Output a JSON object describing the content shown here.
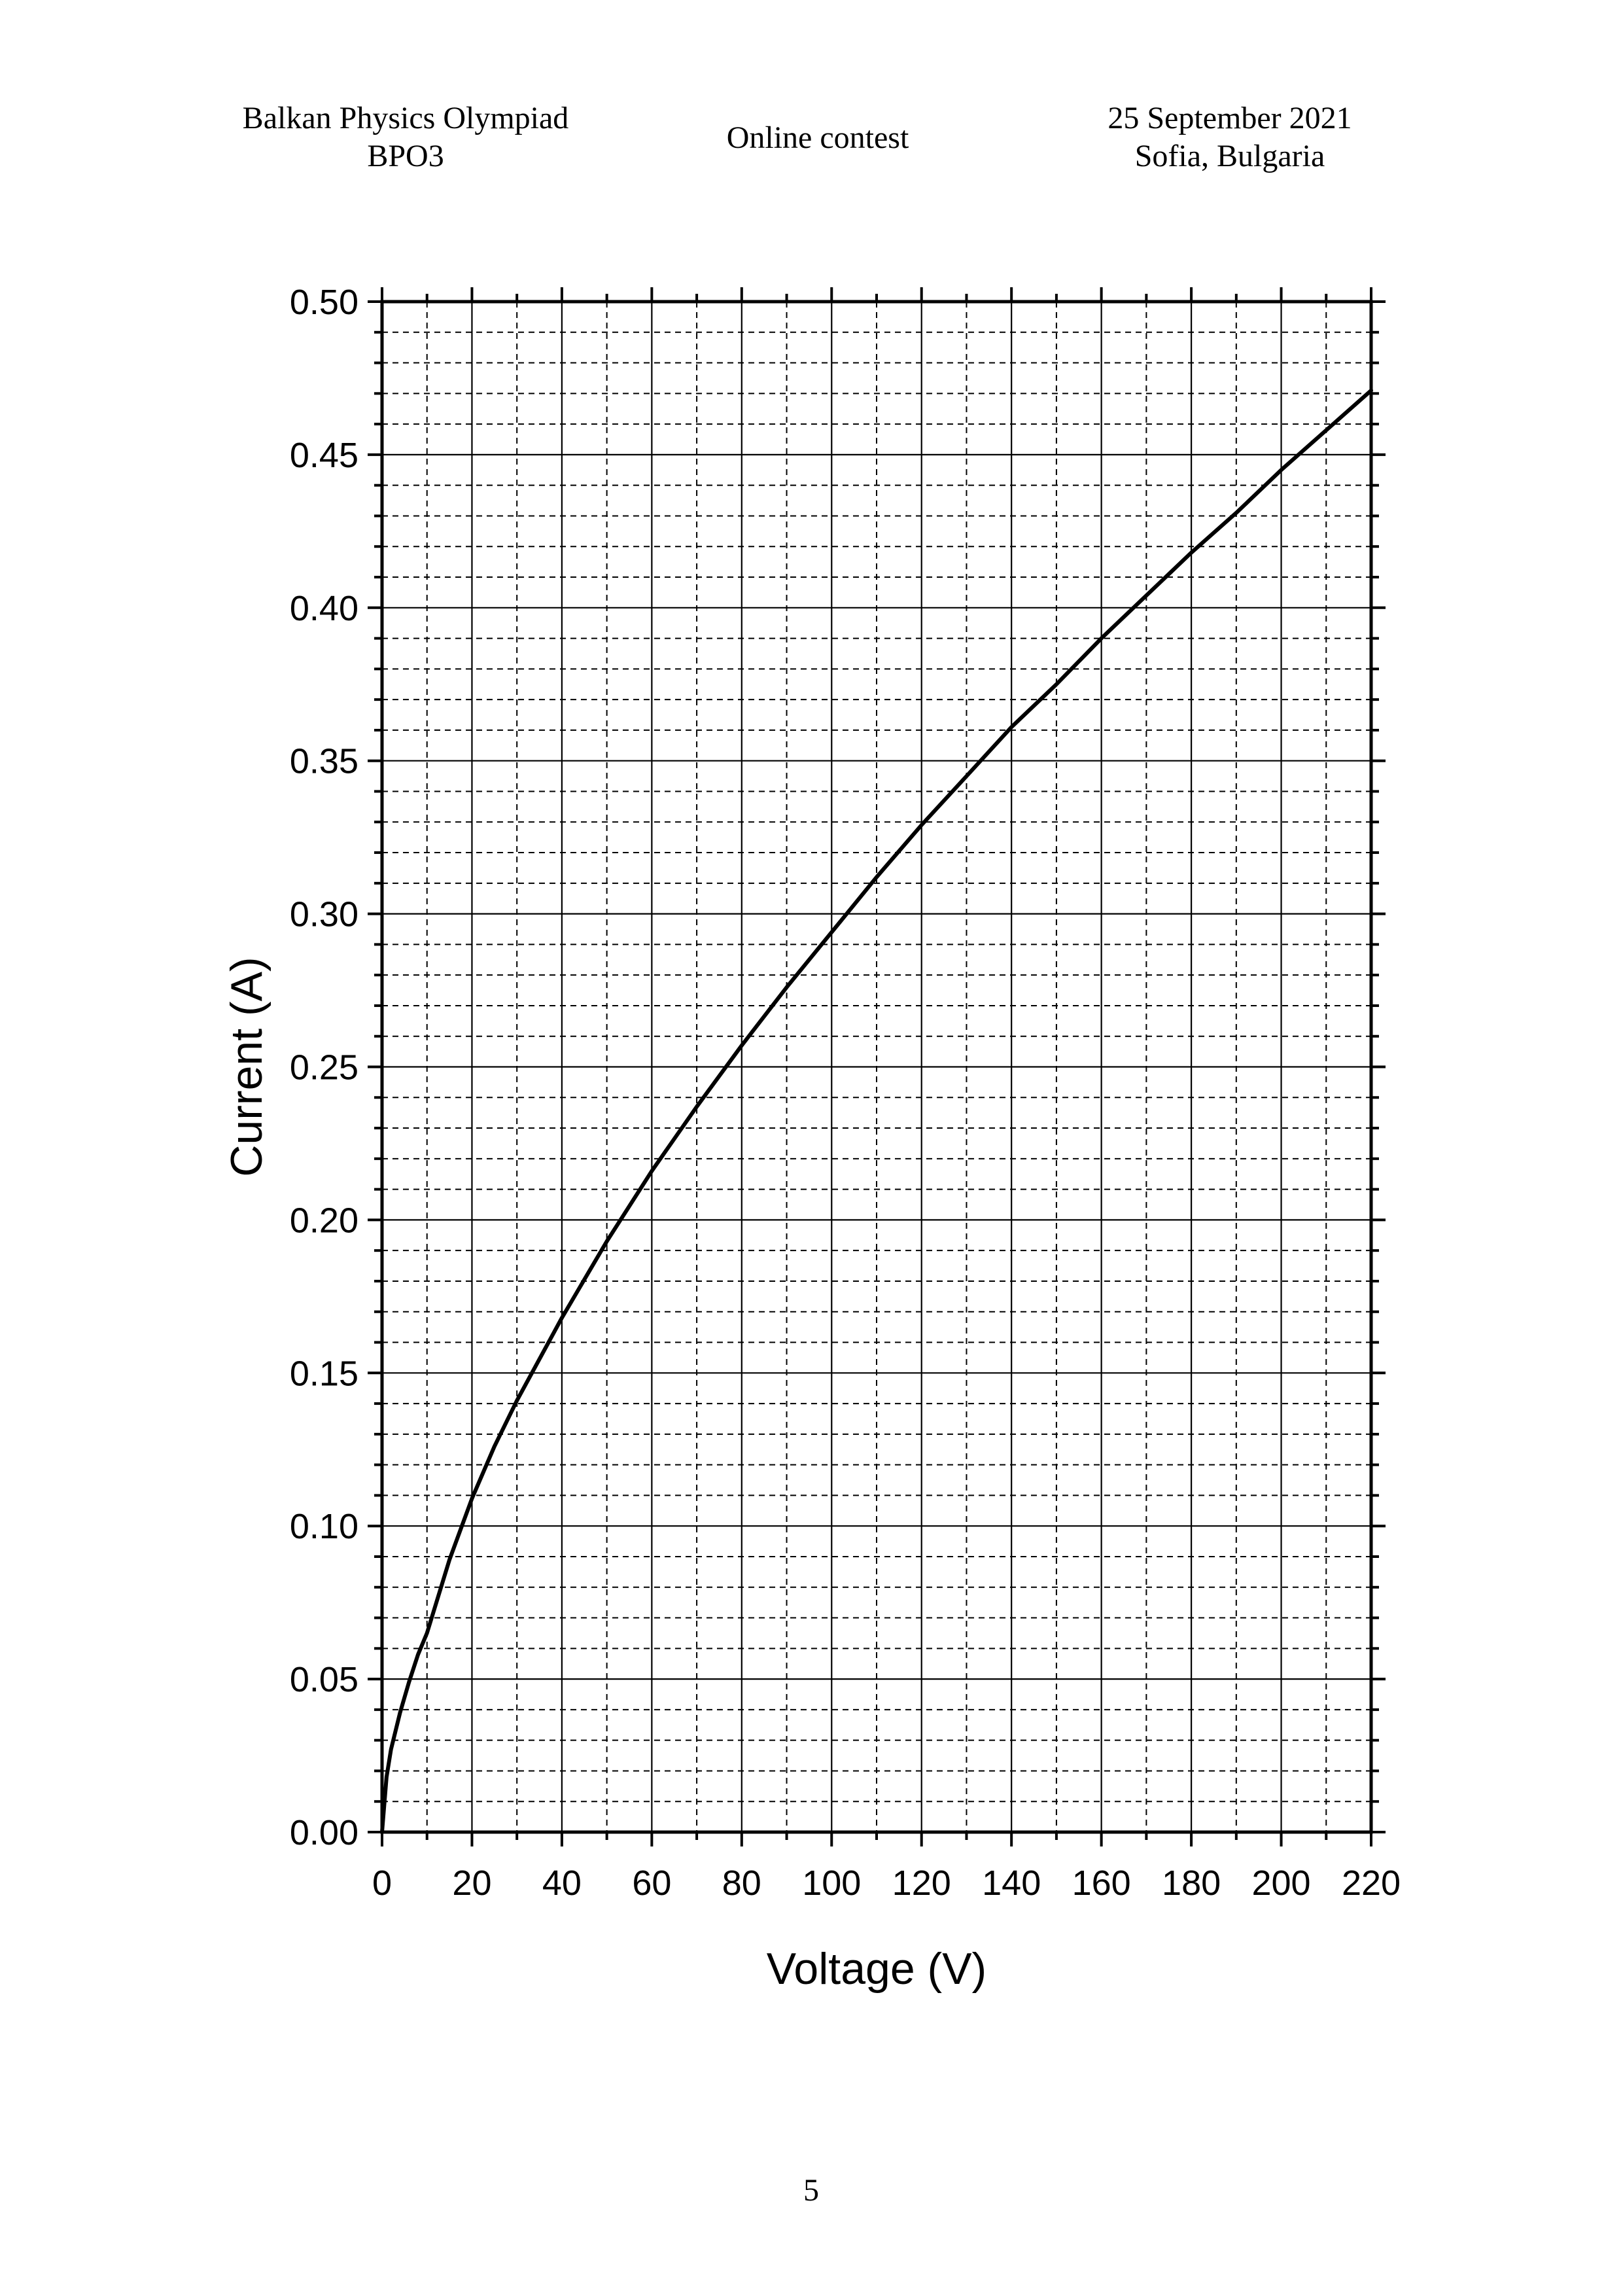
{
  "header": {
    "left_line1": "Balkan Physics Olympiad",
    "left_line2": "BPO3",
    "center": "Online contest",
    "right_line1": "25 September 2021",
    "right_line2": "Sofia, Bulgaria"
  },
  "page_number": "5",
  "chart_data": {
    "type": "line",
    "title": "",
    "xlabel": "Voltage (V)",
    "ylabel": "Current (A)",
    "xlim": [
      0,
      220
    ],
    "ylim": [
      0,
      0.5
    ],
    "x_ticks": [
      0,
      20,
      40,
      60,
      80,
      100,
      120,
      140,
      160,
      180,
      200,
      220
    ],
    "x_tick_labels": [
      "0",
      "20",
      "40",
      "60",
      "80",
      "100",
      "120",
      "140",
      "160",
      "180",
      "200",
      "220"
    ],
    "y_ticks": [
      0,
      0.05,
      0.1,
      0.15,
      0.2,
      0.25,
      0.3,
      0.35,
      0.4,
      0.45,
      0.5
    ],
    "y_tick_labels": [
      "0.00",
      "0.05",
      "0.10",
      "0.15",
      "0.20",
      "0.25",
      "0.30",
      "0.35",
      "0.40",
      "0.45",
      "0.50"
    ],
    "x_minor_step": 10,
    "y_minor_step": 0.01,
    "grid": true,
    "line_color": "#000000",
    "series": [
      {
        "x": [
          0,
          1,
          2,
          4,
          6,
          8,
          10,
          15,
          20,
          25,
          30,
          40,
          50,
          60,
          70,
          80,
          90,
          100,
          110,
          120,
          130,
          140,
          150,
          160,
          170,
          180,
          190,
          200,
          210,
          220
        ],
        "values": [
          0,
          0.018,
          0.027,
          0.039,
          0.049,
          0.058,
          0.065,
          0.089,
          0.109,
          0.126,
          0.141,
          0.168,
          0.193,
          0.216,
          0.237,
          0.257,
          0.276,
          0.294,
          0.312,
          0.329,
          0.345,
          0.361,
          0.375,
          0.39,
          0.404,
          0.418,
          0.431,
          0.445,
          0.458,
          0.471
        ]
      }
    ]
  }
}
